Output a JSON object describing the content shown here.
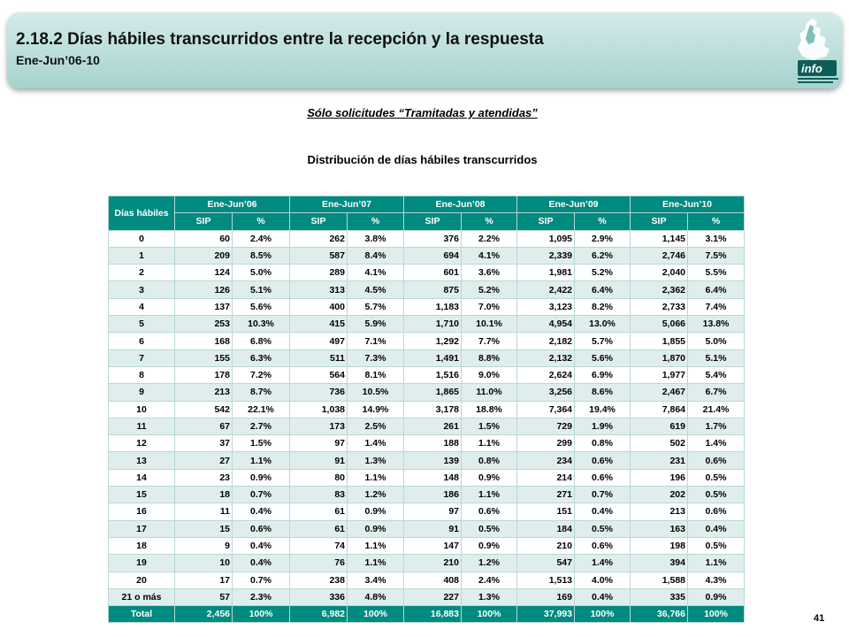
{
  "header": {
    "title": "2.18.2 Días hábiles transcurridos entre la recepción y la respuesta",
    "subtitle": "Ene-Jun’06-10",
    "logo_text": "info"
  },
  "note": "Sólo solicitudes “Tramitadas y atendidas”",
  "table_title": "Distribución de días hábiles transcurridos",
  "table": {
    "corner_label": "Días hábiles",
    "periods": [
      "Ene-Jun’06",
      "Ene-Jun’07",
      "Ene-Jun’08",
      "Ene-Jun’09",
      "Ene-Jun’10"
    ],
    "sub_headers": [
      "SIP",
      "%"
    ],
    "rows": [
      [
        "0",
        "60",
        "2.4%",
        "262",
        "3.8%",
        "376",
        "2.2%",
        "1,095",
        "2.9%",
        "1,145",
        "3.1%"
      ],
      [
        "1",
        "209",
        "8.5%",
        "587",
        "8.4%",
        "694",
        "4.1%",
        "2,339",
        "6.2%",
        "2,746",
        "7.5%"
      ],
      [
        "2",
        "124",
        "5.0%",
        "289",
        "4.1%",
        "601",
        "3.6%",
        "1,981",
        "5.2%",
        "2,040",
        "5.5%"
      ],
      [
        "3",
        "126",
        "5.1%",
        "313",
        "4.5%",
        "875",
        "5.2%",
        "2,422",
        "6.4%",
        "2,362",
        "6.4%"
      ],
      [
        "4",
        "137",
        "5.6%",
        "400",
        "5.7%",
        "1,183",
        "7.0%",
        "3,123",
        "8.2%",
        "2,733",
        "7.4%"
      ],
      [
        "5",
        "253",
        "10.3%",
        "415",
        "5.9%",
        "1,710",
        "10.1%",
        "4,954",
        "13.0%",
        "5,066",
        "13.8%"
      ],
      [
        "6",
        "168",
        "6.8%",
        "497",
        "7.1%",
        "1,292",
        "7.7%",
        "2,182",
        "5.7%",
        "1,855",
        "5.0%"
      ],
      [
        "7",
        "155",
        "6.3%",
        "511",
        "7.3%",
        "1,491",
        "8.8%",
        "2,132",
        "5.6%",
        "1,870",
        "5.1%"
      ],
      [
        "8",
        "178",
        "7.2%",
        "564",
        "8.1%",
        "1,516",
        "9.0%",
        "2,624",
        "6.9%",
        "1,977",
        "5.4%"
      ],
      [
        "9",
        "213",
        "8.7%",
        "736",
        "10.5%",
        "1,865",
        "11.0%",
        "3,256",
        "8.6%",
        "2,467",
        "6.7%"
      ],
      [
        "10",
        "542",
        "22.1%",
        "1,038",
        "14.9%",
        "3,178",
        "18.8%",
        "7,364",
        "19.4%",
        "7,864",
        "21.4%"
      ],
      [
        "11",
        "67",
        "2.7%",
        "173",
        "2.5%",
        "261",
        "1.5%",
        "729",
        "1.9%",
        "619",
        "1.7%"
      ],
      [
        "12",
        "37",
        "1.5%",
        "97",
        "1.4%",
        "188",
        "1.1%",
        "299",
        "0.8%",
        "502",
        "1.4%"
      ],
      [
        "13",
        "27",
        "1.1%",
        "91",
        "1.3%",
        "139",
        "0.8%",
        "234",
        "0.6%",
        "231",
        "0.6%"
      ],
      [
        "14",
        "23",
        "0.9%",
        "80",
        "1.1%",
        "148",
        "0.9%",
        "214",
        "0.6%",
        "196",
        "0.5%"
      ],
      [
        "15",
        "18",
        "0.7%",
        "83",
        "1.2%",
        "186",
        "1.1%",
        "271",
        "0.7%",
        "202",
        "0.5%"
      ],
      [
        "16",
        "11",
        "0.4%",
        "61",
        "0.9%",
        "97",
        "0.6%",
        "151",
        "0.4%",
        "213",
        "0.6%"
      ],
      [
        "17",
        "15",
        "0.6%",
        "61",
        "0.9%",
        "91",
        "0.5%",
        "184",
        "0.5%",
        "163",
        "0.4%"
      ],
      [
        "18",
        "9",
        "0.4%",
        "74",
        "1.1%",
        "147",
        "0.9%",
        "210",
        "0.6%",
        "198",
        "0.5%"
      ],
      [
        "19",
        "10",
        "0.4%",
        "76",
        "1.1%",
        "210",
        "1.2%",
        "547",
        "1.4%",
        "394",
        "1.1%"
      ],
      [
        "20",
        "17",
        "0.7%",
        "238",
        "3.4%",
        "408",
        "2.4%",
        "1,513",
        "4.0%",
        "1,588",
        "4.3%"
      ],
      [
        "21 o más",
        "57",
        "2.3%",
        "336",
        "4.8%",
        "227",
        "1.3%",
        "169",
        "0.4%",
        "335",
        "0.9%"
      ]
    ],
    "total": [
      "Total",
      "2,456",
      "100%",
      "6,982",
      "100%",
      "16,883",
      "100%",
      "37,993",
      "100%",
      "36,766",
      "100%"
    ]
  },
  "page_number": "41",
  "colors": {
    "header_teal": "#008a80",
    "row_alt": "#dfeeed",
    "banner": "#a6d3cf"
  }
}
